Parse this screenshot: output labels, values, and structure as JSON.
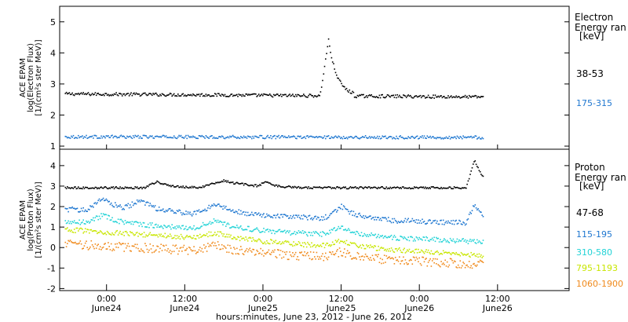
{
  "chart_data": [
    {
      "type": "scatter",
      "panel": "electron",
      "ylabel_lines": [
        "ACE EPAM",
        "log(Electron Flux)",
        "[1/(cm²s ster MeV)]"
      ],
      "ylim": [
        0.9,
        5.5
      ],
      "yticks": [
        "1",
        "2",
        "3",
        "4",
        "5"
      ],
      "legend_title": [
        "Electron",
        "Energy ran",
        "[keV]"
      ],
      "series": [
        {
          "name": "38-53",
          "color": "#000000",
          "baseline": 2.7,
          "trend": -0.1,
          "noise": 0.05,
          "events": [
            {
              "x": 0.63,
              "width": 0.02,
              "amp": 1.8
            }
          ]
        },
        {
          "name": "175-315",
          "color": "#1f77d0",
          "baseline": 1.32,
          "trend": -0.02,
          "noise": 0.05,
          "events": []
        }
      ]
    },
    {
      "type": "scatter",
      "panel": "proton",
      "ylabel_lines": [
        "ACE EPAM",
        "log(Proton Flux)",
        "[1/(cm²s ster MeV)]"
      ],
      "ylim": [
        -2.1,
        4.8
      ],
      "yticks": [
        "-2",
        "-1",
        "0",
        "1",
        "2",
        "3",
        "4"
      ],
      "legend_title": [
        "Proton",
        "Energy ran",
        "[keV]"
      ],
      "series": [
        {
          "name": "47-68",
          "color": "#000000",
          "baseline": 2.95,
          "trend": 0.0,
          "noise": 0.05,
          "events": [
            {
              "x": 0.22,
              "width": 0.03,
              "amp": 0.3
            },
            {
              "x": 0.38,
              "width": 0.06,
              "amp": 0.35
            },
            {
              "x": 0.48,
              "width": 0.02,
              "amp": 0.2
            },
            {
              "x": 0.98,
              "width": 0.02,
              "amp": 1.4
            }
          ]
        },
        {
          "name": "115-195",
          "color": "#1f77d0",
          "baseline": 1.9,
          "trend": -0.7,
          "noise": 0.12,
          "events": [
            {
              "x": 0.09,
              "width": 0.04,
              "amp": 0.6
            },
            {
              "x": 0.18,
              "width": 0.04,
              "amp": 0.5
            },
            {
              "x": 0.36,
              "width": 0.05,
              "amp": 0.5
            },
            {
              "x": 0.66,
              "width": 0.04,
              "amp": 0.6
            },
            {
              "x": 0.98,
              "width": 0.02,
              "amp": 1.0
            }
          ]
        },
        {
          "name": "310-580",
          "color": "#22d3d6",
          "baseline": 1.3,
          "trend": -1.0,
          "noise": 0.12,
          "events": [
            {
              "x": 0.09,
              "width": 0.04,
              "amp": 0.4
            },
            {
              "x": 0.36,
              "width": 0.05,
              "amp": 0.4
            },
            {
              "x": 0.66,
              "width": 0.04,
              "amp": 0.4
            }
          ]
        },
        {
          "name": "795-1193",
          "color": "#c8e600",
          "baseline": 0.9,
          "trend": -1.25,
          "noise": 0.12,
          "events": [
            {
              "x": 0.36,
              "width": 0.05,
              "amp": 0.3
            },
            {
              "x": 0.66,
              "width": 0.04,
              "amp": 0.3
            }
          ]
        },
        {
          "name": "1060-1900",
          "color": "#f08a1c",
          "baseline": 0.2,
          "trend": -1.0,
          "noise": 0.22,
          "events": [
            {
              "x": 0.36,
              "width": 0.05,
              "amp": 0.3
            },
            {
              "x": 0.66,
              "width": 0.04,
              "amp": 0.3
            }
          ]
        }
      ]
    }
  ],
  "x_axis": {
    "ticks": [
      {
        "time": "0:00",
        "date": "June24"
      },
      {
        "time": "12:00",
        "date": "June24"
      },
      {
        "time": "0:00",
        "date": "June25"
      },
      {
        "time": "12:00",
        "date": "June25"
      },
      {
        "time": "0:00",
        "date": "June26"
      },
      {
        "time": "12:00",
        "date": "June26"
      }
    ],
    "xlabel": "hours:minutes, June 23, 2012 - June 26, 2012"
  }
}
